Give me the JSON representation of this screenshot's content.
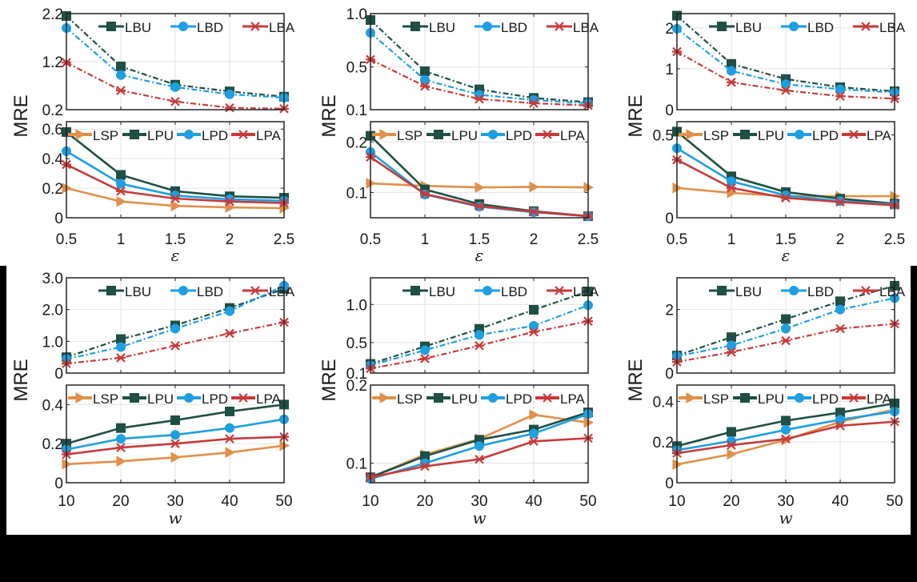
{
  "colors": {
    "LBU": "#1f4f45",
    "LBD": "#1e9fe0",
    "LBA": "#c83a3a",
    "LSP": "#e0904a",
    "LPU": "#1f4f45",
    "LPD": "#1e9fe0",
    "LPA": "#c83a3a",
    "grid": "#e3e3e3",
    "axis": "#222222"
  },
  "chart_data": [
    {
      "type": "line",
      "row": 0,
      "col": 0,
      "ylabel": "MRE",
      "xlabel": "ε",
      "x": [
        0.5,
        1,
        1.5,
        2,
        2.5
      ],
      "xticks": [
        "0.5",
        "1",
        "1.5",
        "2",
        "2.5"
      ],
      "upper": {
        "ylim": [
          0.2,
          2.2
        ],
        "yticks": [
          0.2,
          1.2,
          2.2
        ],
        "ytick_labels": [
          "0.2",
          "1.2",
          "2.2"
        ],
        "series": [
          {
            "name": "LBU",
            "values": [
              2.15,
              1.1,
              0.72,
              0.58,
              0.47
            ]
          },
          {
            "name": "LBD",
            "values": [
              1.9,
              0.92,
              0.67,
              0.52,
              0.45
            ]
          },
          {
            "name": "LBA",
            "values": [
              1.18,
              0.6,
              0.37,
              0.24,
              0.22
            ]
          }
        ]
      },
      "lower": {
        "ylim": [
          0,
          0.65
        ],
        "yticks": [
          0,
          0.2,
          0.4,
          0.6
        ],
        "ytick_labels": [
          "0",
          "0.2",
          "0.4",
          "0.6"
        ],
        "series": [
          {
            "name": "LSP",
            "values": [
              0.2,
              0.11,
              0.08,
              0.07,
              0.065
            ]
          },
          {
            "name": "LPU",
            "values": [
              0.58,
              0.29,
              0.18,
              0.145,
              0.135
            ]
          },
          {
            "name": "LPD",
            "values": [
              0.45,
              0.23,
              0.15,
              0.125,
              0.115
            ]
          },
          {
            "name": "LPA",
            "values": [
              0.36,
              0.18,
              0.13,
              0.11,
              0.1
            ]
          }
        ]
      }
    },
    {
      "type": "line",
      "row": 0,
      "col": 1,
      "ylabel": "MRE",
      "xlabel": "ε",
      "x": [
        0.5,
        1,
        1.5,
        2,
        2.5
      ],
      "xticks": [
        "0.5",
        "1",
        "1.5",
        "2",
        "2.5"
      ],
      "upper": {
        "ylim": [
          0.1,
          1.0
        ],
        "yticks": [
          0.1,
          0.5,
          1.0
        ],
        "ytick_labels": [
          "0.1",
          "0.5",
          "1.0"
        ],
        "series": [
          {
            "name": "LBU",
            "values": [
              0.94,
              0.46,
              0.29,
              0.21,
              0.17
            ]
          },
          {
            "name": "LBD",
            "values": [
              0.82,
              0.38,
              0.24,
              0.19,
              0.16
            ]
          },
          {
            "name": "LBA",
            "values": [
              0.57,
              0.32,
              0.2,
              0.16,
              0.14
            ]
          }
        ]
      },
      "lower": {
        "ylim": [
          0.05,
          0.24
        ],
        "yticks": [
          0.1,
          0.2
        ],
        "ytick_labels": [
          "0.1",
          "0.2"
        ],
        "series": [
          {
            "name": "LSP",
            "values": [
              0.118,
              0.113,
              0.11,
              0.111,
              0.11
            ]
          },
          {
            "name": "LPU",
            "values": [
              0.212,
              0.106,
              0.077,
              0.063,
              0.053
            ]
          },
          {
            "name": "LPD",
            "values": [
              0.18,
              0.096,
              0.072,
              0.061,
              0.053
            ]
          },
          {
            "name": "LPA",
            "values": [
              0.17,
              0.097,
              0.073,
              0.062,
              0.053
            ]
          }
        ]
      }
    },
    {
      "type": "line",
      "row": 0,
      "col": 2,
      "ylabel": "MRE",
      "xlabel": "ε",
      "x": [
        0.5,
        1,
        1.5,
        2,
        2.5
      ],
      "xticks": [
        "0.5",
        "1",
        "1.5",
        "2",
        "2.5"
      ],
      "upper": {
        "ylim": [
          0,
          2.35
        ],
        "yticks": [
          0,
          1,
          2
        ],
        "ytick_labels": [
          "0",
          "1",
          "2"
        ],
        "series": [
          {
            "name": "LBU",
            "values": [
              2.3,
              1.12,
              0.75,
              0.55,
              0.45
            ]
          },
          {
            "name": "LBD",
            "values": [
              1.98,
              0.95,
              0.62,
              0.5,
              0.42
            ]
          },
          {
            "name": "LBA",
            "values": [
              1.42,
              0.67,
              0.47,
              0.33,
              0.27
            ]
          }
        ]
      },
      "lower": {
        "ylim": [
          0,
          0.58
        ],
        "yticks": [
          0,
          0.5
        ],
        "ytick_labels": [
          "0",
          "0.5"
        ],
        "series": [
          {
            "name": "LSP",
            "values": [
              0.18,
              0.15,
              0.13,
              0.13,
              0.13
            ]
          },
          {
            "name": "LPU",
            "values": [
              0.52,
              0.25,
              0.155,
              0.115,
              0.085
            ]
          },
          {
            "name": "LPD",
            "values": [
              0.42,
              0.22,
              0.135,
              0.1,
              0.08
            ]
          },
          {
            "name": "LPA",
            "values": [
              0.35,
              0.18,
              0.12,
              0.095,
              0.075
            ]
          }
        ]
      }
    },
    {
      "type": "line",
      "row": 1,
      "col": 0,
      "ylabel": "MRE",
      "xlabel": "w",
      "x": [
        10,
        20,
        30,
        40,
        50
      ],
      "xticks": [
        "10",
        "20",
        "30",
        "40",
        "50"
      ],
      "upper": {
        "ylim": [
          0,
          3.0
        ],
        "yticks": [
          0,
          1.0,
          2.0,
          3.0
        ],
        "ytick_labels": [
          "0",
          "1.0",
          "2.0",
          "3.0"
        ],
        "series": [
          {
            "name": "LBU",
            "values": [
              0.5,
              1.07,
              1.5,
              2.05,
              2.65
            ]
          },
          {
            "name": "LBD",
            "values": [
              0.44,
              0.82,
              1.4,
              1.95,
              2.75
            ]
          },
          {
            "name": "LBA",
            "values": [
              0.3,
              0.48,
              0.86,
              1.25,
              1.6
            ]
          }
        ]
      },
      "lower": {
        "ylim": [
          0,
          0.5
        ],
        "yticks": [
          0,
          0.2,
          0.4
        ],
        "ytick_labels": [
          "0",
          "0.2",
          "0.4"
        ],
        "series": [
          {
            "name": "LSP",
            "values": [
              0.095,
              0.11,
              0.13,
              0.155,
              0.19
            ]
          },
          {
            "name": "LPU",
            "values": [
              0.2,
              0.28,
              0.32,
              0.365,
              0.4
            ]
          },
          {
            "name": "LPD",
            "values": [
              0.17,
              0.225,
              0.245,
              0.28,
              0.325
            ]
          },
          {
            "name": "LPA",
            "values": [
              0.145,
              0.18,
              0.2,
              0.225,
              0.235
            ]
          }
        ]
      }
    },
    {
      "type": "line",
      "row": 1,
      "col": 1,
      "ylabel": "MRE",
      "xlabel": "w",
      "x": [
        10,
        20,
        30,
        40,
        50
      ],
      "xticks": [
        "10",
        "20",
        "30",
        "40",
        "50"
      ],
      "upper": {
        "ylim": [
          0.1,
          1.35
        ],
        "yticks": [
          0.1,
          0.5,
          1.0
        ],
        "ytick_labels": [
          "0.1",
          "0.5",
          "1.0"
        ],
        "series": [
          {
            "name": "LBU",
            "values": [
              0.22,
              0.45,
              0.68,
              0.93,
              1.17
            ]
          },
          {
            "name": "LBD",
            "values": [
              0.2,
              0.4,
              0.6,
              0.72,
              0.99
            ]
          },
          {
            "name": "LBA",
            "values": [
              0.16,
              0.29,
              0.46,
              0.64,
              0.78
            ]
          }
        ]
      },
      "lower": {
        "ylim": [
          0.075,
          0.2
        ],
        "yticks": [
          0.1,
          0.2
        ],
        "ytick_labels": [
          "0.1",
          "0.2"
        ],
        "series": [
          {
            "name": "LSP",
            "values": [
              0.082,
              0.111,
              0.131,
              0.162,
              0.152
            ]
          },
          {
            "name": "LPU",
            "values": [
              0.082,
              0.109,
              0.13,
              0.143,
              0.165
            ]
          },
          {
            "name": "LPD",
            "values": [
              0.08,
              0.1,
              0.122,
              0.138,
              0.163
            ]
          },
          {
            "name": "LPA",
            "values": [
              0.082,
              0.096,
              0.105,
              0.128,
              0.132
            ]
          }
        ]
      }
    },
    {
      "type": "line",
      "row": 1,
      "col": 2,
      "ylabel": "MRE",
      "xlabel": "w",
      "x": [
        10,
        20,
        30,
        40,
        50
      ],
      "xticks": [
        "10",
        "20",
        "30",
        "40",
        "50"
      ],
      "upper": {
        "ylim": [
          0,
          3.0
        ],
        "yticks": [
          0,
          2
        ],
        "ytick_labels": [
          "0",
          "2"
        ],
        "series": [
          {
            "name": "LBU",
            "values": [
              0.55,
              1.13,
              1.7,
              2.26,
              2.75
            ]
          },
          {
            "name": "LBD",
            "values": [
              0.53,
              0.87,
              1.4,
              2.0,
              2.36
            ]
          },
          {
            "name": "LBA",
            "values": [
              0.35,
              0.66,
              1.02,
              1.4,
              1.55
            ]
          }
        ]
      },
      "lower": {
        "ylim": [
          0,
          0.48
        ],
        "yticks": [
          0,
          0.2,
          0.4
        ],
        "ytick_labels": [
          "0",
          "0.2",
          "0.4"
        ],
        "series": [
          {
            "name": "LSP",
            "values": [
              0.09,
              0.14,
              0.21,
              0.3,
              0.36
            ]
          },
          {
            "name": "LPU",
            "values": [
              0.18,
              0.25,
              0.305,
              0.345,
              0.39
            ]
          },
          {
            "name": "LPD",
            "values": [
              0.16,
              0.205,
              0.26,
              0.31,
              0.35
            ]
          },
          {
            "name": "LPA",
            "values": [
              0.145,
              0.185,
              0.215,
              0.28,
              0.3
            ]
          }
        ]
      }
    }
  ],
  "legend": {
    "upper": [
      "LBU",
      "LBD",
      "LBA"
    ],
    "lower": [
      "LSP",
      "LPU",
      "LPD",
      "LPA"
    ]
  }
}
